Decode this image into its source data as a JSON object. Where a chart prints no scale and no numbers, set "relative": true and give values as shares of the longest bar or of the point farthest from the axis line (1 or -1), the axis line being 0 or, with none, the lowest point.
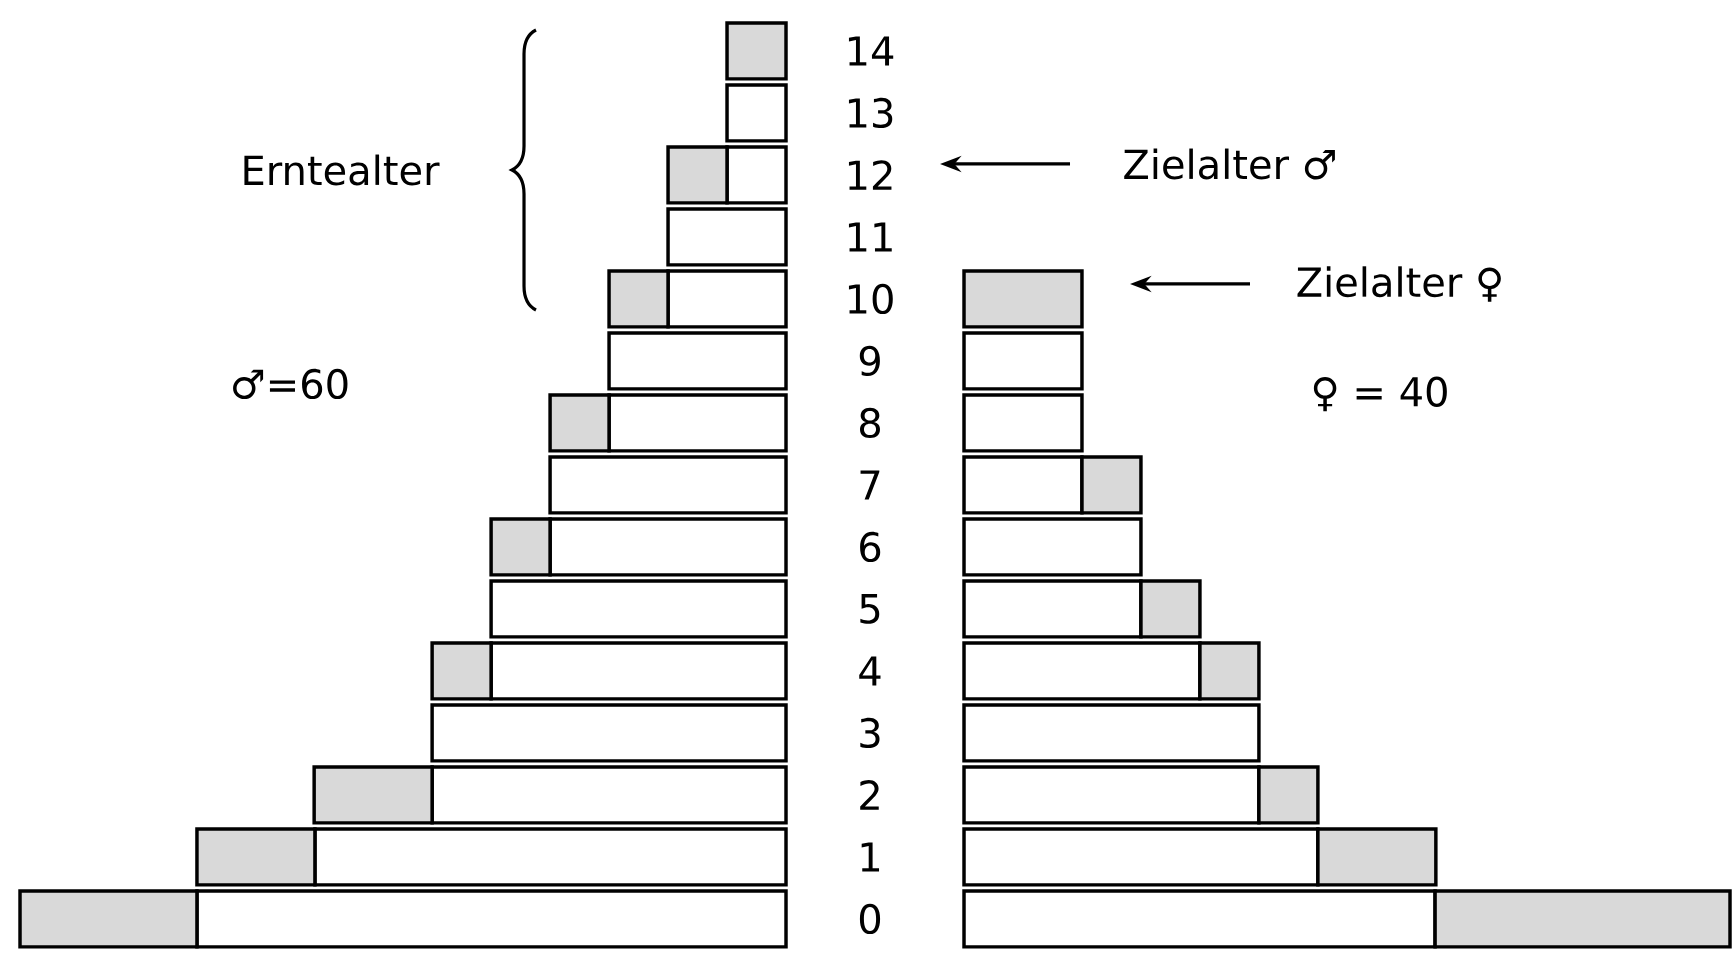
{
  "chart_data": [
    {
      "type": "bar",
      "orientation": "horizontal",
      "stacked": true,
      "relative": true,
      "tick_labels": "y",
      "categories": [
        "14",
        "13",
        "12",
        "11",
        "10",
        "9",
        "8",
        "7",
        "6",
        "5",
        "4",
        "3",
        "2",
        "1",
        "0"
      ],
      "series": [
        {
          "color": "#ffffff",
          "values": [
            null,
            0.077,
            0.077,
            0.154,
            0.154,
            0.231,
            0.231,
            0.308,
            0.308,
            0.385,
            0.385,
            0.462,
            0.462,
            0.615,
            0.769
          ]
        },
        {
          "color": "#d9d9d9",
          "values": [
            0.077,
            null,
            0.077,
            null,
            0.077,
            null,
            0.077,
            null,
            0.077,
            null,
            0.077,
            null,
            0.154,
            0.154,
            0.231
          ]
        }
      ],
      "annotations": [
        "Erntealter",
        "♂=60"
      ]
    },
    {
      "type": "bar",
      "orientation": "horizontal",
      "stacked": true,
      "relative": true,
      "tick_labels": false,
      "categories": [
        "14",
        "13",
        "12",
        "11",
        "10",
        "9",
        "8",
        "7",
        "6",
        "5",
        "4",
        "3",
        "2",
        "1",
        "0"
      ],
      "series": [
        {
          "color": "#ffffff",
          "values": [
            null,
            null,
            null,
            null,
            null,
            0.154,
            0.154,
            0.154,
            0.231,
            0.231,
            0.308,
            0.385,
            0.385,
            0.462,
            0.615
          ]
        },
        {
          "color": "#d9d9d9",
          "values": [
            null,
            null,
            null,
            null,
            0.154,
            null,
            null,
            0.077,
            null,
            0.077,
            0.077,
            null,
            0.077,
            0.154,
            0.385
          ]
        }
      ],
      "annotations": [
        "Zielalter ♂",
        "Zielalter ♀",
        "♀ = 40"
      ]
    }
  ]
}
